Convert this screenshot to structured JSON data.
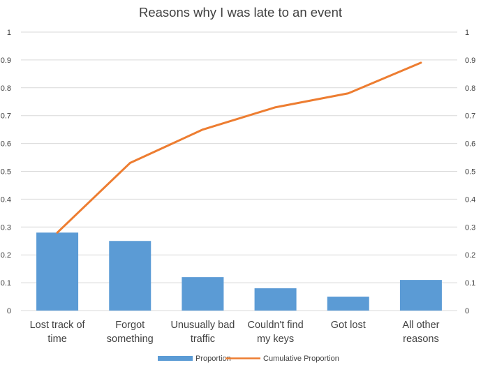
{
  "chart_data": {
    "type": "bar",
    "title": "Reasons why I was late to an event",
    "categories": [
      [
        "Lost track of",
        "time"
      ],
      [
        "Forgot",
        "something"
      ],
      [
        "Unusually bad",
        "traffic"
      ],
      [
        "Couldn't find",
        "my keys"
      ],
      [
        "Got lost"
      ],
      [
        "All other",
        "reasons"
      ]
    ],
    "series": [
      {
        "name": "Proportion",
        "kind": "bar",
        "values": [
          0.28,
          0.25,
          0.12,
          0.08,
          0.05,
          0.11
        ]
      },
      {
        "name": "Cumulative Proportion",
        "kind": "line",
        "values": [
          0.28,
          0.53,
          0.65,
          0.73,
          0.78,
          0.89
        ]
      }
    ],
    "ylim": [
      0,
      1
    ],
    "y_ticks": [
      "0",
      "0.1",
      "0.2",
      "0.3",
      "0.4",
      "0.5",
      "0.6",
      "0.7",
      "0.8",
      "0.9",
      "1"
    ],
    "secondary_ylim": [
      0,
      1
    ],
    "secondary_y_ticks": [
      "0",
      "0.1",
      "0.2",
      "0.3",
      "0.4",
      "0.5",
      "0.6",
      "0.7",
      "0.8",
      "0.9",
      "1"
    ],
    "grid": true,
    "legend_position": "bottom",
    "colors": {
      "bar": "#5b9bd5",
      "line": "#ed7d31",
      "grid": "#d9d9d9",
      "text": "#404040"
    }
  }
}
